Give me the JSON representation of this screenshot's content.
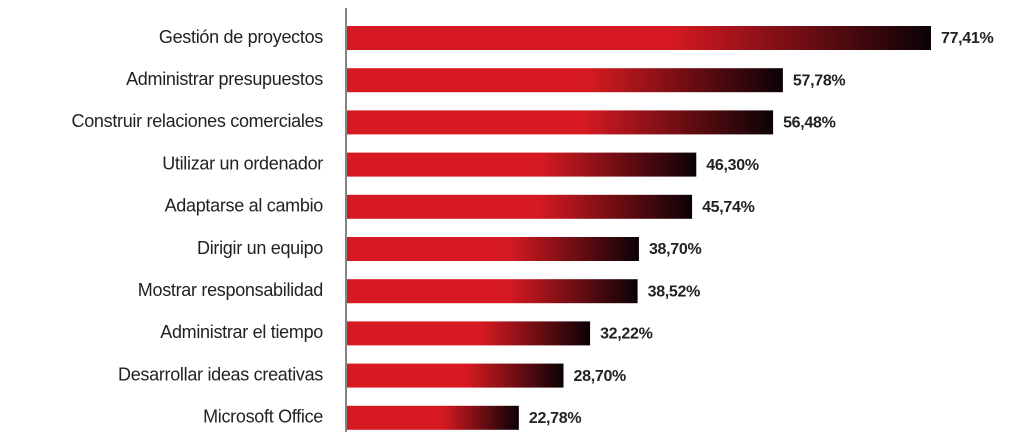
{
  "chart_data": {
    "type": "bar",
    "orientation": "horizontal",
    "categories": [
      "Gestión de proyectos",
      "Administrar presupuestos",
      "Construir relaciones comerciales",
      "Utilizar un ordenador",
      "Adaptarse al cambio",
      "Dirigir un equipo",
      "Mostrar responsabilidad",
      "Administrar el tiempo",
      "Desarrollar ideas creativas",
      "Microsoft Office"
    ],
    "values": [
      77.41,
      57.78,
      56.48,
      46.3,
      45.74,
      38.7,
      38.52,
      32.22,
      28.7,
      22.78
    ],
    "value_labels": [
      "77,41%",
      "57,78%",
      "56,48%",
      "46,30%",
      "45,74%",
      "38,70%",
      "38,52%",
      "32,22%",
      "28,70%",
      "22,78%"
    ],
    "color": "#d71a21",
    "gradient_end_color": "#0b0206"
  }
}
